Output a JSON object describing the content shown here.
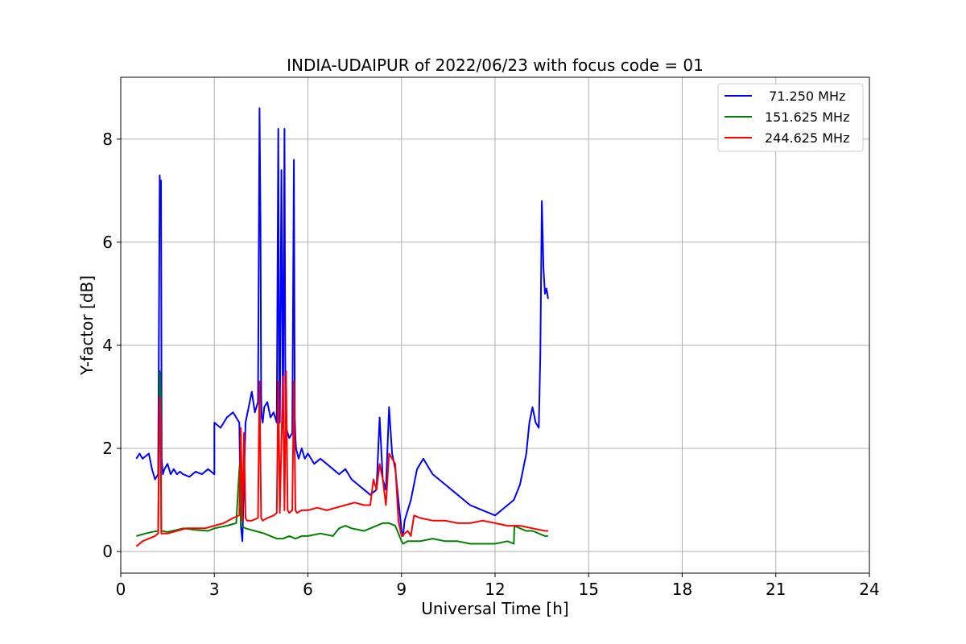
{
  "chart_data": {
    "type": "line",
    "title": "INDIA-UDAIPUR of 2022/06/23 with focus code = 01",
    "xlabel": "Universal Time [h]",
    "ylabel": "Y-factor [dB]",
    "xlim": [
      0,
      24
    ],
    "ylim": [
      -0.42,
      9.2
    ],
    "xticks": [
      0,
      3,
      6,
      9,
      12,
      15,
      18,
      21,
      24
    ],
    "yticks": [
      0,
      2,
      4,
      6,
      8
    ],
    "grid": true,
    "legend_position": "top-right",
    "series": [
      {
        "name": " 71.250 MHz",
        "color": "#0000ff",
        "x": [
          0.5,
          0.6,
          0.7,
          0.8,
          0.9,
          1.0,
          1.1,
          1.2,
          1.25,
          1.27,
          1.29,
          1.31,
          1.35,
          1.4,
          1.5,
          1.6,
          1.7,
          1.8,
          1.9,
          2.0,
          2.2,
          2.4,
          2.6,
          2.8,
          3.0,
          3.0,
          3.2,
          3.4,
          3.6,
          3.8,
          3.85,
          3.9,
          4.0,
          4.1,
          4.2,
          4.3,
          4.4,
          4.45,
          4.48,
          4.5,
          4.52,
          4.55,
          4.6,
          4.7,
          4.8,
          4.9,
          5.0,
          5.05,
          5.08,
          5.1,
          5.15,
          5.2,
          5.25,
          5.28,
          5.3,
          5.35,
          5.4,
          5.5,
          5.55,
          5.58,
          5.6,
          5.62,
          5.7,
          5.8,
          5.9,
          6.0,
          6.2,
          6.4,
          6.6,
          6.8,
          7.0,
          7.2,
          7.4,
          7.6,
          7.8,
          8.0,
          8.2,
          8.3,
          8.4,
          8.5,
          8.6,
          8.7,
          8.8,
          8.9,
          9.0,
          9.05,
          9.1,
          9.2,
          9.3,
          9.5,
          9.7,
          9.9,
          10.0,
          10.2,
          10.4,
          10.6,
          10.8,
          11.0,
          11.2,
          11.4,
          11.6,
          11.8,
          12.0,
          12.2,
          12.4,
          12.6,
          12.8,
          12.9,
          13.0,
          13.1,
          13.2,
          13.3,
          13.4,
          13.45,
          13.5,
          13.55,
          13.6,
          13.65,
          13.7
        ],
        "y": [
          1.8,
          1.9,
          1.8,
          1.85,
          1.9,
          1.6,
          1.4,
          1.5,
          7.3,
          6.5,
          7.2,
          1.8,
          1.5,
          1.6,
          1.7,
          1.5,
          1.6,
          1.5,
          1.55,
          1.5,
          1.45,
          1.55,
          1.5,
          1.6,
          1.5,
          2.5,
          2.4,
          2.6,
          2.7,
          2.5,
          0.5,
          0.2,
          2.5,
          2.8,
          3.1,
          2.7,
          2.9,
          8.6,
          6.4,
          3.0,
          2.6,
          2.5,
          2.8,
          2.9,
          2.6,
          2.7,
          2.5,
          8.2,
          2.6,
          2.5,
          7.4,
          2.4,
          8.2,
          2.5,
          2.4,
          2.3,
          2.2,
          2.3,
          7.6,
          2.6,
          2.2,
          2.0,
          1.8,
          2.0,
          1.8,
          1.9,
          1.7,
          1.8,
          1.7,
          1.6,
          1.5,
          1.6,
          1.4,
          1.3,
          1.2,
          1.1,
          1.2,
          2.6,
          1.4,
          1.2,
          2.8,
          1.9,
          1.6,
          1.0,
          0.4,
          0.3,
          0.6,
          0.8,
          1.0,
          1.6,
          1.8,
          1.6,
          1.5,
          1.4,
          1.3,
          1.2,
          1.1,
          1.0,
          0.9,
          0.85,
          0.8,
          0.75,
          0.7,
          0.8,
          0.9,
          1.0,
          1.3,
          1.6,
          1.9,
          2.5,
          2.8,
          2.5,
          2.4,
          3.8,
          6.8,
          5.5,
          5.0,
          5.1,
          4.9
        ]
      },
      {
        "name": "151.625 MHz",
        "color": "#008000",
        "x": [
          0.5,
          0.8,
          1.0,
          1.2,
          1.25,
          1.28,
          1.3,
          1.5,
          1.8,
          2.0,
          2.4,
          2.8,
          3.0,
          3.4,
          3.7,
          3.8,
          3.82,
          3.85,
          4.0,
          4.3,
          4.6,
          4.8,
          5.0,
          5.2,
          5.4,
          5.6,
          5.8,
          6.0,
          6.4,
          6.8,
          7.0,
          7.2,
          7.4,
          7.8,
          8.0,
          8.2,
          8.4,
          8.6,
          8.8,
          9.0,
          9.05,
          9.2,
          9.6,
          10.0,
          10.4,
          10.8,
          11.2,
          11.6,
          12.0,
          12.4,
          12.6,
          12.62,
          12.8,
          13.0,
          13.2,
          13.4,
          13.6,
          13.7
        ],
        "y": [
          0.3,
          0.35,
          0.38,
          0.4,
          3.5,
          3.0,
          0.4,
          0.38,
          0.42,
          0.45,
          0.42,
          0.4,
          0.45,
          0.5,
          0.55,
          1.6,
          1.7,
          0.5,
          0.45,
          0.4,
          0.35,
          0.3,
          0.25,
          0.25,
          0.3,
          0.25,
          0.3,
          0.3,
          0.35,
          0.3,
          0.45,
          0.5,
          0.45,
          0.4,
          0.45,
          0.5,
          0.55,
          0.55,
          0.5,
          0.2,
          0.15,
          0.2,
          0.2,
          0.25,
          0.2,
          0.2,
          0.15,
          0.15,
          0.15,
          0.2,
          0.15,
          0.5,
          0.45,
          0.4,
          0.4,
          0.35,
          0.3,
          0.3
        ]
      },
      {
        "name": "244.625 MHz",
        "color": "#ff0000",
        "x": [
          0.5,
          0.7,
          0.9,
          1.1,
          1.2,
          1.25,
          1.28,
          1.3,
          1.5,
          1.8,
          2.1,
          2.4,
          2.7,
          3.0,
          3.3,
          3.6,
          3.8,
          3.85,
          3.9,
          3.95,
          4.0,
          4.05,
          4.2,
          4.4,
          4.45,
          4.5,
          4.55,
          4.7,
          4.9,
          5.0,
          5.05,
          5.1,
          5.2,
          5.25,
          5.3,
          5.35,
          5.4,
          5.5,
          5.55,
          5.6,
          5.65,
          5.8,
          6.0,
          6.3,
          6.6,
          6.9,
          7.2,
          7.5,
          7.8,
          8.0,
          8.1,
          8.2,
          8.3,
          8.4,
          8.5,
          8.6,
          8.7,
          8.8,
          8.9,
          9.0,
          9.2,
          9.3,
          9.4,
          9.6,
          10.0,
          10.4,
          10.8,
          11.2,
          11.6,
          12.0,
          12.4,
          12.8,
          13.2,
          13.6,
          13.7
        ],
        "y": [
          0.1,
          0.2,
          0.25,
          0.3,
          0.35,
          3.0,
          2.5,
          0.35,
          0.35,
          0.4,
          0.45,
          0.45,
          0.45,
          0.5,
          0.55,
          0.65,
          0.7,
          2.4,
          0.6,
          2.3,
          0.65,
          0.6,
          0.6,
          0.65,
          3.3,
          0.65,
          0.6,
          0.65,
          0.7,
          0.75,
          3.3,
          0.75,
          3.4,
          0.8,
          3.5,
          0.8,
          0.75,
          0.8,
          3.3,
          0.8,
          0.75,
          0.8,
          0.8,
          0.85,
          0.8,
          0.85,
          0.9,
          0.95,
          0.9,
          0.9,
          1.4,
          1.2,
          1.7,
          1.4,
          0.9,
          1.9,
          1.8,
          1.7,
          0.6,
          0.3,
          0.4,
          0.3,
          0.7,
          0.65,
          0.6,
          0.6,
          0.55,
          0.55,
          0.6,
          0.55,
          0.5,
          0.5,
          0.45,
          0.4,
          0.4
        ]
      }
    ]
  }
}
